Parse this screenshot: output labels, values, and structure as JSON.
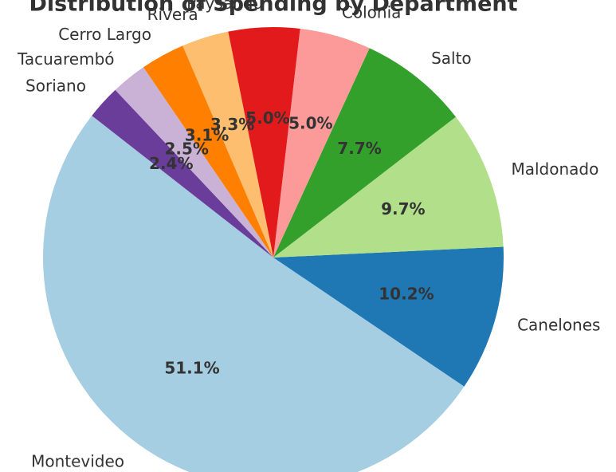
{
  "chart_data": {
    "type": "pie",
    "title": "Distribution of Spending by Department",
    "categories": [
      "Montevideo",
      "Canelones",
      "Maldonado",
      "Salto",
      "Colonia",
      "Paysandú",
      "Rivera",
      "Cerro Largo",
      "Tacuarembó",
      "Soriano"
    ],
    "values": [
      51.1,
      10.2,
      9.7,
      7.7,
      5.0,
      5.0,
      3.3,
      3.1,
      2.5,
      2.4
    ],
    "value_labels": [
      "51.1%",
      "10.2%",
      "9.7%",
      "7.7%",
      "5.0%",
      "5.0%",
      "3.3%",
      "3.1%",
      "2.5%",
      "2.4%"
    ],
    "colors": [
      "#a6cee3",
      "#1f78b4",
      "#b2df8a",
      "#33a02c",
      "#fb9a99",
      "#e31a1c",
      "#fdbf6f",
      "#ff7f00",
      "#cab2d6",
      "#6a3d9a"
    ]
  }
}
